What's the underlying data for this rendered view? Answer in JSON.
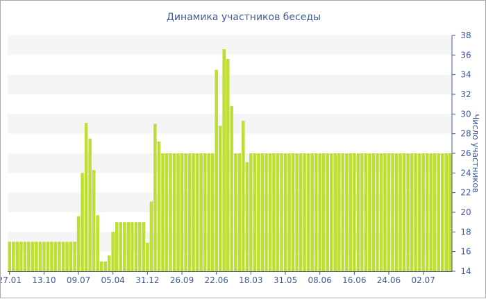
{
  "chart_data": {
    "type": "bar",
    "title": "Динамика участников беседы",
    "ylabel": "Число участников",
    "xlabel": "",
    "ylim": [
      14,
      38
    ],
    "yticks": [
      14,
      16,
      18,
      20,
      22,
      24,
      26,
      28,
      30,
      32,
      34,
      36,
      38
    ],
    "y_axis_side": "right",
    "grid": "alternating horizontal bands",
    "xtick_labels": [
      "27.01",
      "13.10",
      "09.07",
      "05.04",
      "31.12",
      "26.09",
      "22.06",
      "18.03",
      "31.05",
      "08.06",
      "16.06",
      "24.06",
      "02.07"
    ],
    "xtick_bar_index": [
      0,
      9,
      18,
      27,
      36,
      45,
      54,
      63,
      72,
      81,
      90,
      99,
      108
    ],
    "values": [
      17,
      17,
      17,
      17,
      17,
      17,
      17,
      17,
      17,
      17,
      17,
      17,
      17,
      17,
      17,
      17,
      17,
      17,
      19.6,
      24,
      29.1,
      27.5,
      24.3,
      19.7,
      15,
      15,
      15.6,
      18,
      19,
      19,
      19,
      19,
      19,
      19,
      19,
      19,
      16.9,
      21.1,
      29,
      27.2,
      26,
      26,
      26,
      26,
      26,
      26,
      26,
      26,
      26,
      26,
      26,
      26,
      26,
      26,
      34.5,
      28.8,
      36.6,
      35.6,
      30.8,
      26,
      26,
      29.3,
      25.1,
      26,
      26,
      26,
      26,
      26,
      26,
      26,
      26,
      26,
      26,
      26,
      26,
      26,
      26,
      26,
      26,
      26,
      26,
      26,
      26,
      26,
      26,
      26,
      26,
      26,
      26,
      26,
      26,
      26,
      26,
      26,
      26,
      26,
      26,
      26,
      26,
      26,
      26,
      26,
      26,
      26,
      26,
      26,
      26,
      26,
      26,
      26,
      26,
      26,
      26,
      26,
      26,
      26
    ],
    "colors": {
      "bar": "#bddf33",
      "band": "#f5f5f5",
      "text": "#3e5a9a",
      "tick": "#3e5a9a"
    }
  }
}
